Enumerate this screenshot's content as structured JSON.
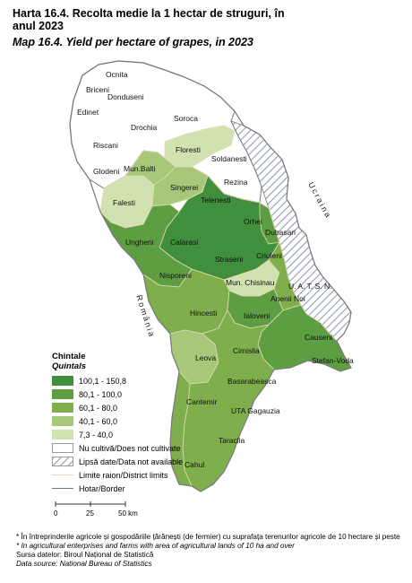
{
  "title_ro": "Harta 16.4. Recolta medie la 1 hectar de  struguri, în anul 2023",
  "title_en": "Map 16.4. Yield per hectare of grapes, in 2023",
  "colors": {
    "class5": "#3f8f3c",
    "class4": "#5e9e43",
    "class3": "#7fae4c",
    "class2": "#a6c878",
    "class1": "#cfe2b0",
    "none": "#ffffff",
    "hatch": "#8a93b0",
    "district_limit": "#e6d8b8",
    "border": "#777777"
  },
  "neighbors": {
    "ukraine": "Ucraina",
    "romania": "România"
  },
  "regions": [
    {
      "name": "Ocnita",
      "class": "none"
    },
    {
      "name": "Briceni",
      "class": "none"
    },
    {
      "name": "Edinet",
      "class": "none"
    },
    {
      "name": "Donduseni",
      "class": "none"
    },
    {
      "name": "Drochia",
      "class": "none"
    },
    {
      "name": "Soroca",
      "class": "none"
    },
    {
      "name": "Riscani",
      "class": "none"
    },
    {
      "name": "Glodeni",
      "class": "none"
    },
    {
      "name": "Floresti",
      "class": "class1"
    },
    {
      "name": "Soldanesti",
      "class": "none"
    },
    {
      "name": "Mun.Balti",
      "class": "class2"
    },
    {
      "name": "Rezina",
      "class": "none"
    },
    {
      "name": "Singerei",
      "class": "class2"
    },
    {
      "name": "Falesti",
      "class": "class1"
    },
    {
      "name": "Telenesti",
      "class": "class5"
    },
    {
      "name": "Orhei",
      "class": "class5"
    },
    {
      "name": "Dubasari",
      "class": "class4"
    },
    {
      "name": "Ungheni",
      "class": "class4"
    },
    {
      "name": "Calarasi",
      "class": "class5"
    },
    {
      "name": "Straseni",
      "class": "class5"
    },
    {
      "name": "Criuleni",
      "class": "class5"
    },
    {
      "name": "Nisporeni",
      "class": "class4"
    },
    {
      "name": "Mun. Chisinau",
      "class": "class1"
    },
    {
      "name": "U.  A.  T.  S.  N.",
      "class": "hatch"
    },
    {
      "name": "Anenii Noi",
      "class": "class3"
    },
    {
      "name": "Hincesti",
      "class": "class3"
    },
    {
      "name": "Ialoveni",
      "class": "class4"
    },
    {
      "name": "Causeni",
      "class": "class4"
    },
    {
      "name": "Leova",
      "class": "class2"
    },
    {
      "name": "Cimislia",
      "class": "class3"
    },
    {
      "name": "Stefan-Voda",
      "class": "class4"
    },
    {
      "name": "Basarabeasca",
      "class": "class3"
    },
    {
      "name": "Cantemir",
      "class": "class3"
    },
    {
      "name": "UTA Gagauzia",
      "class": "class3"
    },
    {
      "name": "Taraclia",
      "class": "class3"
    },
    {
      "name": "Cahul",
      "class": "class3"
    }
  ],
  "legend": {
    "title": "Chintale",
    "subtitle": "Quintals",
    "classes": [
      {
        "label": "100,1 - 150,8",
        "color": "#3f8f3c"
      },
      {
        "label": "80,1 - 100,0",
        "color": "#5e9e43"
      },
      {
        "label": "60,1 - 80,0",
        "color": "#7fae4c"
      },
      {
        "label": "40,1 - 60,0",
        "color": "#a6c878"
      },
      {
        "label": "7,3 - 40,0",
        "color": "#cfe2b0"
      }
    ],
    "no_cultivate": "Nu cultivă/Does not cultivate",
    "no_data": "Lipsă date/Data not available",
    "district_limits": "Limite raion/District limits",
    "border": "Hotar/Border"
  },
  "scale": {
    "ticks": [
      "0",
      "25",
      "50 km"
    ]
  },
  "footnotes": {
    "note_ro": "* În întreprinderile agricole și gospodăriile țărănești (de fermier) cu suprafața terenurilor agricole de 10 hectare și peste",
    "note_en": "* In agricultural enterprises and farms with area of agricultural lands of 10 ha and over",
    "source_ro": "Sursa datelor: Biroul Național de Statistică",
    "source_en": "Data source: National Bureau of Statistics"
  }
}
